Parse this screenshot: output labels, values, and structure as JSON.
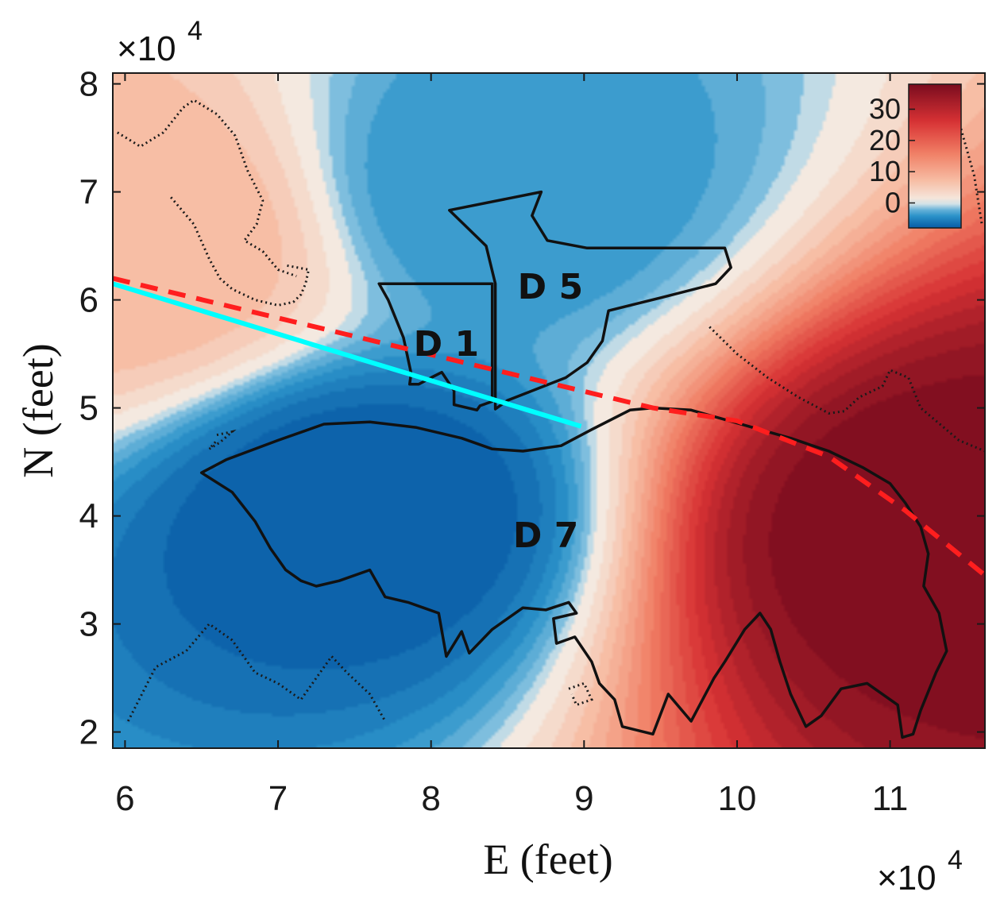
{
  "chart_data": {
    "type": "heatmap",
    "xlabel": "E (feet)",
    "ylabel": "N (feet)",
    "x_multiplier": "×10",
    "y_multiplier": "×10",
    "multiplier_exponent": "4",
    "xlim": [
      5.92,
      11.62
    ],
    "ylim": [
      1.85,
      8.1
    ],
    "x_ticks": [
      "6",
      "7",
      "8",
      "9",
      "10",
      "11"
    ],
    "x_tick_values": [
      6,
      7,
      8,
      9,
      10,
      11
    ],
    "y_ticks": [
      "2",
      "3",
      "4",
      "5",
      "6",
      "7",
      "8"
    ],
    "y_tick_values": [
      2,
      3,
      4,
      5,
      6,
      7,
      8
    ],
    "colorbar": {
      "ticks": [
        "0",
        "10",
        "20",
        "30"
      ],
      "tick_values": [
        0,
        10,
        20,
        30
      ],
      "range": [
        -8,
        38
      ],
      "colormap": "blue-white-red diverging",
      "low_color": "#0a63b0",
      "mid_color": "#f4f0ea",
      "high_color": "#7a0c1e"
    },
    "field_sources": [
      {
        "x": 7.55,
        "y": 4.05,
        "value": -8
      },
      {
        "x": 8.45,
        "y": 7.05,
        "value": -4
      },
      {
        "x": 11.35,
        "y": 3.85,
        "value": 38
      },
      {
        "x": 6.05,
        "y": 6.55,
        "value": 8
      }
    ],
    "annotations": [
      {
        "text": "D 1",
        "x": 8.1,
        "y": 5.57
      },
      {
        "text": "D 5",
        "x": 8.78,
        "y": 6.1
      },
      {
        "text": "D 7",
        "x": 8.75,
        "y": 3.8
      }
    ],
    "lines": [
      {
        "color": "#00ffff",
        "style": "solid",
        "x": [
          5.92,
          8.98
        ],
        "y": [
          6.15,
          4.83
        ]
      },
      {
        "color": "#ff1e1e",
        "style": "dashed",
        "x": [
          5.92,
          9.45,
          10.0,
          10.6,
          11.1,
          11.62
        ],
        "y": [
          6.2,
          5.0,
          4.88,
          4.55,
          4.05,
          3.45
        ]
      }
    ],
    "regions": [
      {
        "name": "D 1",
        "x": [
          7.66,
          8.4,
          8.4,
          8.32,
          8.3,
          8.15,
          8.15,
          8.07,
          8.0,
          7.92,
          7.86,
          7.87,
          7.82,
          7.72,
          7.66
        ],
        "y": [
          6.15,
          6.15,
          5.06,
          5.02,
          4.98,
          5.03,
          5.16,
          5.33,
          5.28,
          5.22,
          5.22,
          5.32,
          5.65,
          6.0,
          6.15
        ]
      },
      {
        "name": "D 5",
        "x": [
          8.12,
          8.72,
          8.66,
          8.76,
          9.02,
          9.92,
          9.96,
          9.86,
          9.5,
          9.16,
          9.12,
          9.02,
          8.88,
          8.5,
          8.42,
          8.42,
          8.36,
          8.12
        ],
        "y": [
          6.83,
          7.0,
          6.78,
          6.55,
          6.48,
          6.48,
          6.3,
          6.15,
          6.02,
          5.9,
          5.62,
          5.42,
          5.28,
          5.07,
          4.99,
          6.15,
          6.5,
          6.83
        ]
      },
      {
        "name": "D 7",
        "x": [
          6.5,
          6.66,
          7.0,
          7.3,
          7.6,
          7.9,
          8.2,
          8.4,
          8.6,
          8.85,
          9.05,
          9.3,
          9.45,
          9.7,
          9.9,
          10.15,
          10.35,
          10.6,
          10.82,
          11.0,
          11.1,
          11.2,
          11.25,
          11.22,
          11.32,
          11.37,
          11.3,
          11.2,
          11.15,
          11.08,
          11.05,
          10.85,
          10.68,
          10.55,
          10.45,
          10.35,
          10.28,
          10.22,
          10.15,
          10.05,
          9.92,
          9.85,
          9.7,
          9.55,
          9.45,
          9.25,
          9.2,
          9.1,
          9.05,
          8.94,
          8.82,
          8.8,
          8.95,
          8.9,
          8.75,
          8.6,
          8.4,
          8.25,
          8.2,
          8.1,
          8.05,
          7.95,
          7.85,
          7.7,
          7.6,
          7.4,
          7.25,
          7.15,
          7.05,
          6.95,
          6.85,
          6.7,
          6.5
        ],
        "y": [
          4.4,
          4.52,
          4.7,
          4.85,
          4.87,
          4.82,
          4.72,
          4.62,
          4.6,
          4.65,
          4.8,
          4.98,
          5.0,
          4.98,
          4.9,
          4.8,
          4.72,
          4.6,
          4.45,
          4.3,
          4.12,
          3.9,
          3.65,
          3.35,
          3.1,
          2.75,
          2.55,
          2.2,
          1.98,
          1.95,
          2.25,
          2.45,
          2.4,
          2.15,
          2.05,
          2.35,
          2.65,
          2.95,
          3.1,
          2.95,
          2.65,
          2.5,
          2.1,
          2.35,
          1.98,
          2.05,
          2.3,
          2.45,
          2.65,
          2.88,
          2.82,
          3.05,
          3.1,
          3.2,
          3.13,
          3.15,
          2.95,
          2.73,
          2.93,
          2.7,
          3.1,
          3.15,
          3.2,
          3.25,
          3.5,
          3.4,
          3.35,
          3.4,
          3.5,
          3.7,
          3.95,
          4.22,
          4.4
        ]
      }
    ],
    "dotted_coastlines": [
      {
        "x": [
          5.95,
          6.1,
          6.25,
          6.38,
          6.45,
          6.6,
          6.72,
          6.8,
          6.9,
          6.86,
          6.78,
          6.9,
          7.0,
          7.12
        ],
        "y": [
          7.55,
          7.42,
          7.55,
          7.78,
          7.85,
          7.72,
          7.52,
          7.2,
          6.92,
          6.7,
          6.55,
          6.45,
          6.28,
          6.22
        ]
      },
      {
        "x": [
          6.3,
          6.45,
          6.55,
          6.62,
          6.7,
          6.85,
          7.0,
          7.1,
          7.15,
          7.18,
          7.2,
          7.05
        ],
        "y": [
          6.95,
          6.7,
          6.38,
          6.2,
          6.1,
          6.0,
          5.95,
          5.98,
          6.05,
          6.15,
          6.28,
          6.32
        ]
      },
      {
        "x": [
          9.82,
          10.0,
          10.2,
          10.4,
          10.6,
          10.7,
          10.8,
          10.95,
          11.0,
          11.12,
          11.2,
          11.3,
          11.45,
          11.62
        ],
        "y": [
          5.75,
          5.5,
          5.28,
          5.1,
          4.95,
          4.97,
          5.1,
          5.2,
          5.35,
          5.28,
          5.0,
          4.88,
          4.7,
          4.6
        ]
      },
      {
        "x": [
          6.02,
          6.2,
          6.4,
          6.55,
          6.7,
          6.85,
          7.0,
          7.15,
          7.25,
          7.35,
          7.45,
          7.6,
          7.7
        ],
        "y": [
          2.1,
          2.6,
          2.75,
          3.0,
          2.85,
          2.55,
          2.45,
          2.3,
          2.5,
          2.7,
          2.55,
          2.35,
          2.1
        ]
      },
      {
        "x": [
          6.6,
          6.7,
          6.62,
          6.55,
          6.6
        ],
        "y": [
          4.75,
          4.78,
          4.68,
          4.62,
          4.7
        ]
      },
      {
        "x": [
          11.3,
          11.4,
          11.45,
          11.5,
          11.55,
          11.6
        ],
        "y": [
          7.7,
          7.9,
          7.65,
          7.4,
          7.15,
          6.7
        ]
      },
      {
        "x": [
          8.9,
          9.0,
          9.05,
          8.95,
          8.92
        ],
        "y": [
          2.4,
          2.45,
          2.3,
          2.25,
          2.35
        ]
      }
    ]
  }
}
